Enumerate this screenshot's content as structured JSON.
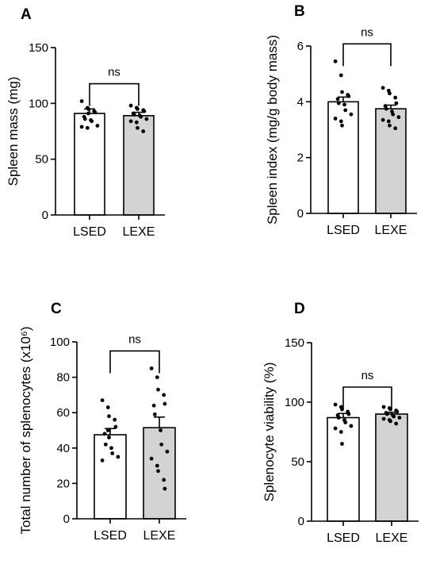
{
  "chart_data": [
    {
      "type": "bar",
      "panel_label": "A",
      "ylabel": "Spleen mass (mg)",
      "categories": [
        "LSED",
        "LEXE"
      ],
      "ylim": [
        0,
        150
      ],
      "yticks": [
        0,
        50,
        100,
        150
      ],
      "values": [
        91,
        89
      ],
      "sem": [
        4,
        3
      ],
      "bar_colors": [
        "#ffffff",
        "#d3d3d3"
      ],
      "points": [
        [
          102,
          96,
          95,
          93,
          92,
          88,
          86,
          85,
          84,
          80,
          79,
          78,
          91
        ],
        [
          98,
          96,
          95,
          94,
          93,
          91,
          90,
          89,
          88,
          86,
          84,
          83,
          78,
          75
        ]
      ],
      "annotation": "ns"
    },
    {
      "type": "bar",
      "panel_label": "B",
      "ylabel": "Spleen index (mg/g body mass)",
      "categories": [
        "LSED",
        "LEXE"
      ],
      "ylim": [
        0,
        6
      ],
      "yticks": [
        0,
        2,
        4,
        6
      ],
      "values": [
        4.0,
        3.75
      ],
      "sem": [
        0.17,
        0.13
      ],
      "bar_colors": [
        "#ffffff",
        "#d3d3d3"
      ],
      "points": [
        [
          5.45,
          4.95,
          4.35,
          4.25,
          4.2,
          4.1,
          3.95,
          3.9,
          3.7,
          3.55,
          3.4,
          3.3,
          3.15
        ],
        [
          4.5,
          4.4,
          4.3,
          4.15,
          3.95,
          3.85,
          3.75,
          3.65,
          3.55,
          3.45,
          3.35,
          3.3,
          3.15,
          3.05
        ]
      ],
      "annotation": "ns"
    },
    {
      "type": "bar",
      "panel_label": "C",
      "ylabel": "Total number of splenocytes (x10⁶)",
      "categories": [
        "LSED",
        "LEXE"
      ],
      "ylim": [
        0,
        100
      ],
      "yticks": [
        0,
        20,
        40,
        60,
        80,
        100
      ],
      "values": [
        47.5,
        51.5
      ],
      "sem": [
        3.5,
        6
      ],
      "bar_colors": [
        "#ffffff",
        "#d3d3d3"
      ],
      "points": [
        [
          67,
          63,
          58,
          56,
          52,
          48,
          42,
          40,
          37,
          35,
          33,
          50,
          46
        ],
        [
          85,
          80,
          73,
          70,
          65,
          64,
          59,
          50,
          42,
          38,
          34,
          30,
          27,
          22,
          17
        ]
      ],
      "annotation": "ns"
    },
    {
      "type": "bar",
      "panel_label": "D",
      "ylabel": "Splenocyte viability (%)",
      "categories": [
        "LSED",
        "LEXE"
      ],
      "ylim": [
        0,
        150
      ],
      "yticks": [
        0,
        50,
        100,
        150
      ],
      "values": [
        87,
        90
      ],
      "sem": [
        3.5,
        1.5
      ],
      "bar_colors": [
        "#ffffff",
        "#d3d3d3"
      ],
      "points": [
        [
          98,
          96,
          94,
          92,
          90,
          89,
          87,
          85,
          83,
          80,
          78,
          75,
          65
        ],
        [
          96,
          95,
          94,
          93,
          92,
          91,
          90,
          89,
          88,
          87,
          86,
          85,
          84,
          82
        ]
      ],
      "annotation": "ns"
    }
  ]
}
